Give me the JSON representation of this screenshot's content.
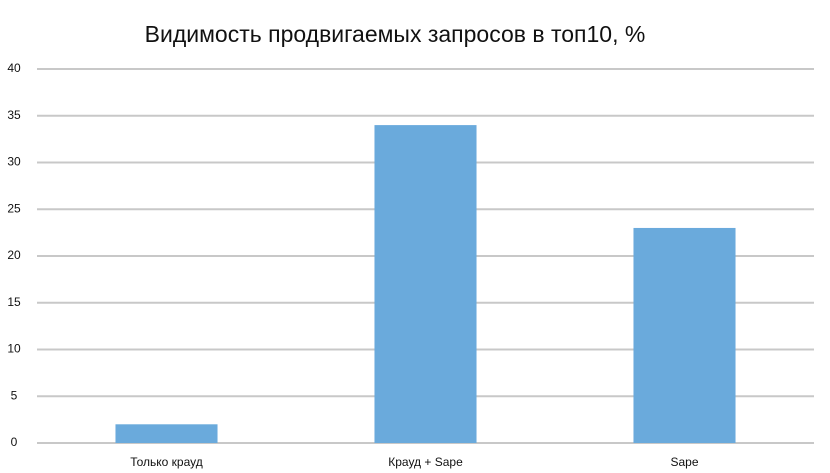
{
  "chart_data": {
    "type": "bar",
    "title": "Видимость продвигаемых запросов в топ10, %",
    "categories": [
      "Только крауд",
      "Крауд + Sape",
      "Sape"
    ],
    "values": [
      2,
      34,
      23
    ],
    "color": "#6aaadc",
    "ylim": [
      0,
      40
    ],
    "yticks": [
      0,
      5,
      10,
      15,
      20,
      25,
      30,
      35,
      40
    ],
    "grid": true
  }
}
